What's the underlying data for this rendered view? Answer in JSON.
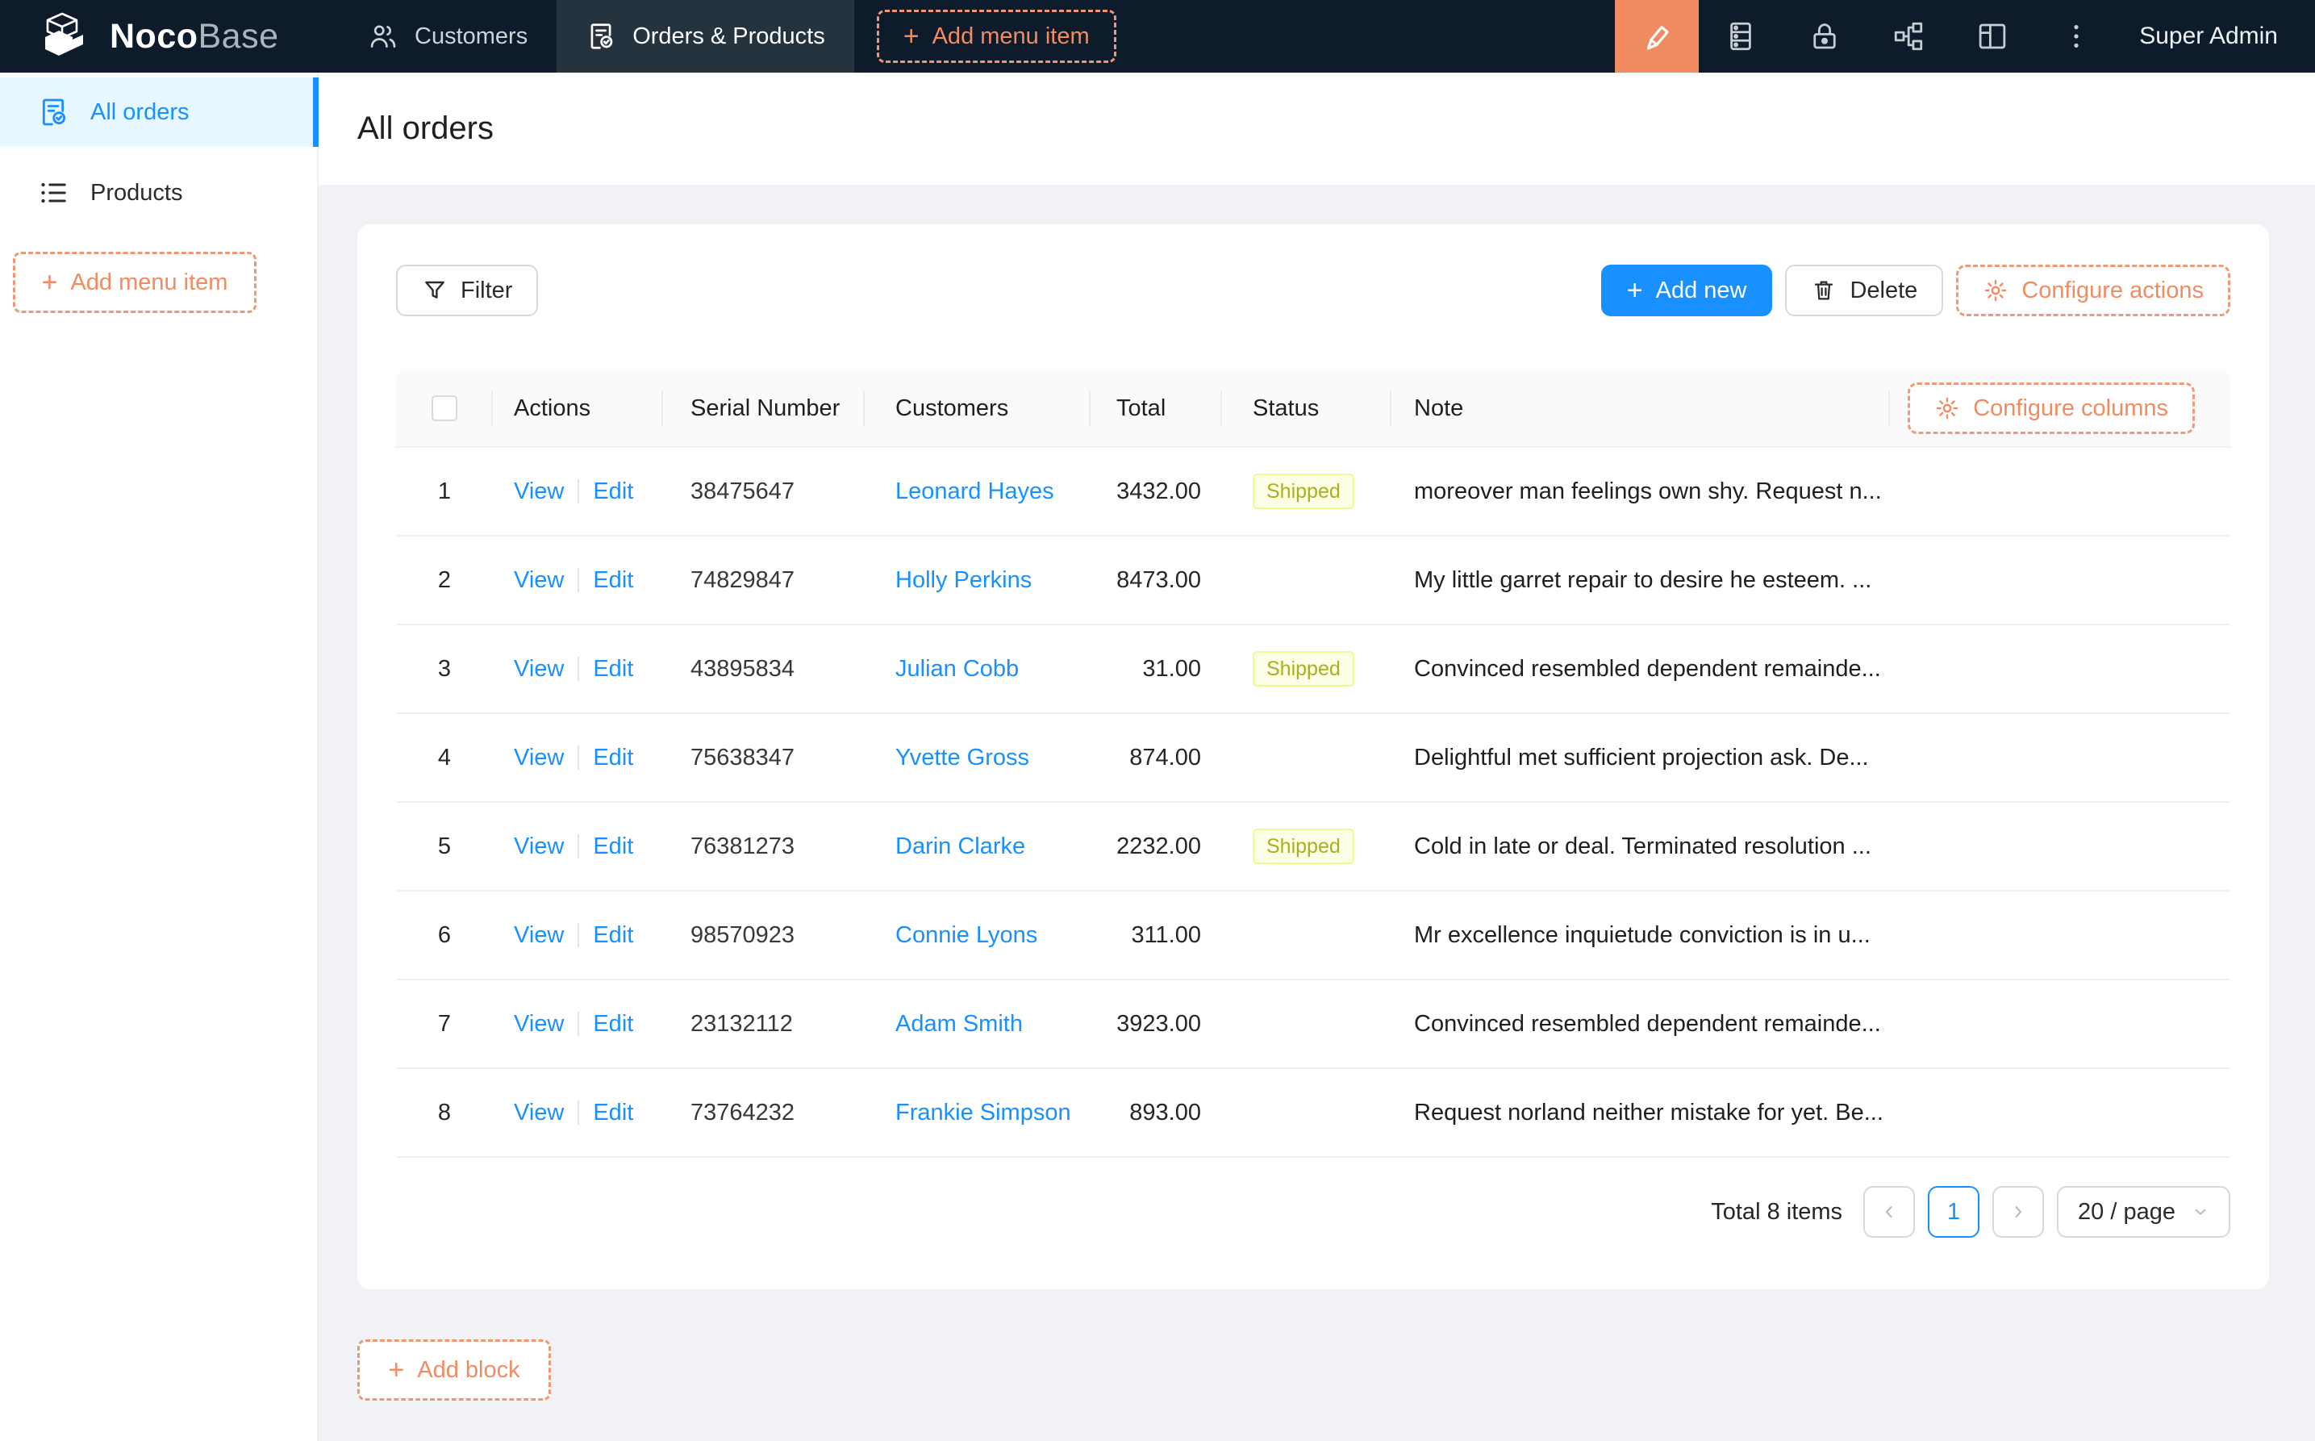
{
  "navbar": {
    "brand_bold": "Noco",
    "brand_light": "Base",
    "menu": [
      {
        "label": "Customers",
        "icon": "team-icon",
        "active": false
      },
      {
        "label": "Orders & Products",
        "icon": "file-done-icon",
        "active": true
      }
    ],
    "add_menu_item": "Add menu item",
    "right_icons": [
      "highlighter-icon",
      "database-icon",
      "lock-icon",
      "partition-icon",
      "layout-icon",
      "more-vertical-icon"
    ],
    "user": "Super Admin"
  },
  "sidebar": {
    "items": [
      {
        "label": "All orders",
        "icon": "file-done-icon",
        "active": true
      },
      {
        "label": "Products",
        "icon": "list-icon",
        "active": false
      }
    ],
    "add_menu_item": "Add menu item"
  },
  "page": {
    "title": "All orders"
  },
  "toolbar": {
    "filter": "Filter",
    "add_new": "Add new",
    "delete": "Delete",
    "configure_actions": "Configure actions"
  },
  "table": {
    "columns": [
      "Actions",
      "Serial Number",
      "Customers",
      "Total",
      "Status",
      "Note"
    ],
    "configure_columns": "Configure columns",
    "actions": {
      "view": "View",
      "edit": "Edit"
    },
    "rows": [
      {
        "index": 1,
        "serial": "38475647",
        "customer": "Leonard Hayes",
        "total": "3432.00",
        "status": "Shipped",
        "note": "moreover man feelings own shy. Request n..."
      },
      {
        "index": 2,
        "serial": "74829847",
        "customer": "Holly Perkins",
        "total": "8473.00",
        "status": "",
        "note": "My little garret repair to desire he esteem. ..."
      },
      {
        "index": 3,
        "serial": "43895834",
        "customer": "Julian Cobb",
        "total": "31.00",
        "status": "Shipped",
        "note": "Convinced resembled dependent remainde..."
      },
      {
        "index": 4,
        "serial": "75638347",
        "customer": "Yvette Gross",
        "total": "874.00",
        "status": "",
        "note": "Delightful met sufficient projection ask. De..."
      },
      {
        "index": 5,
        "serial": "76381273",
        "customer": "Darin Clarke",
        "total": "2232.00",
        "status": "Shipped",
        "note": "Cold in late or deal. Terminated resolution ..."
      },
      {
        "index": 6,
        "serial": "98570923",
        "customer": "Connie Lyons",
        "total": "311.00",
        "status": "",
        "note": "Mr excellence inquietude conviction is in u..."
      },
      {
        "index": 7,
        "serial": "23132112",
        "customer": "Adam Smith",
        "total": "3923.00",
        "status": "",
        "note": "Convinced resembled dependent remainde..."
      },
      {
        "index": 8,
        "serial": "73764232",
        "customer": "Frankie Simpson",
        "total": "893.00",
        "status": "",
        "note": "Request norland neither mistake for yet. Be..."
      }
    ]
  },
  "pagination": {
    "total_text": "Total 8 items",
    "page": "1",
    "page_size": "20 / page"
  },
  "add_block_label": "Add block",
  "colors": {
    "accent_orange": "#f18b62",
    "primary_blue": "#1890ff",
    "navbar_bg": "#0e1b2a",
    "badge_bg": "#fcffe6",
    "badge_border": "#eaff8f",
    "badge_text": "#a0b41f",
    "page_bg": "#f0f2f5"
  }
}
